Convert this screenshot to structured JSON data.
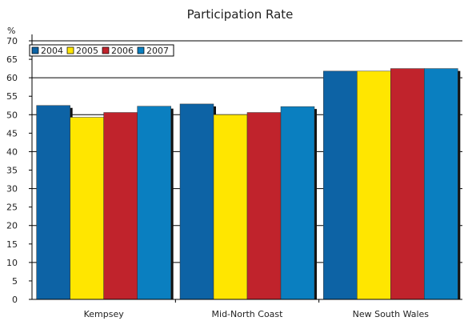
{
  "chart_data": {
    "type": "bar",
    "title": "Participation Rate",
    "ylabel": "%",
    "xlabel": "",
    "ylim": [
      0,
      70
    ],
    "yticks": [
      0,
      5,
      10,
      15,
      20,
      25,
      30,
      35,
      40,
      45,
      50,
      55,
      60,
      65,
      70
    ],
    "grid": true,
    "legend_position": "top-left",
    "categories": [
      "Kempsey",
      "Mid-North Coast",
      "New South Wales"
    ],
    "series": [
      {
        "name": "2004",
        "color": "#0d63a5",
        "values": [
          52.5,
          52.9,
          61.8
        ]
      },
      {
        "name": "2005",
        "color": "#ffe600",
        "values": [
          49.3,
          50.0,
          61.8
        ]
      },
      {
        "name": "2006",
        "color": "#c0232c",
        "values": [
          50.6,
          50.6,
          62.5
        ]
      },
      {
        "name": "2007",
        "color": "#0a7fc0",
        "values": [
          52.3,
          52.2,
          62.5
        ]
      }
    ]
  }
}
